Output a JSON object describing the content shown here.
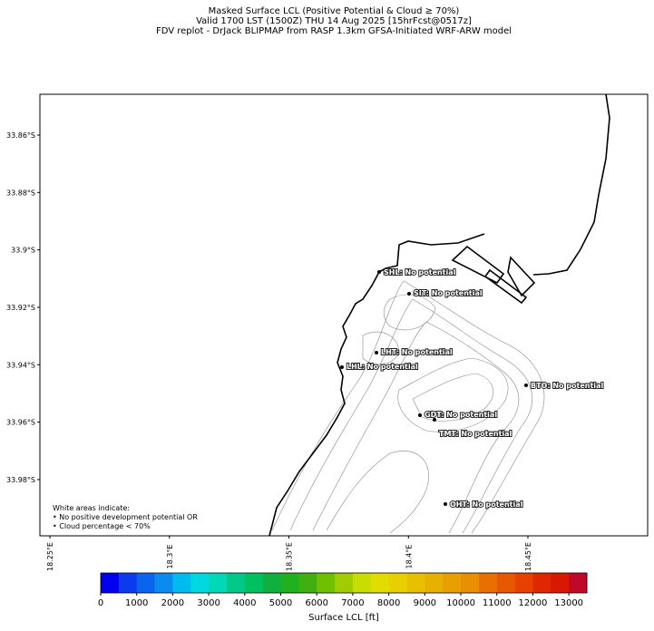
{
  "header": {
    "lines": [
      "Masked Surface LCL (Positive Potential & Cloud ≥ 70%)",
      "Valid 1700 LST (1500Z) THU 14 Aug 2025 [15hrFcst@0517z]",
      "FDV replot - DrJack BLIPMAP from RASP 1.3km GFSA-Initiated WRF-ARW model"
    ]
  },
  "map": {
    "xlim": [
      18.2458,
      18.5001
    ],
    "ylim": [
      -33.8458,
      -33.9996
    ],
    "yticks": [
      {
        "value": -33.86,
        "label": "33.86°S"
      },
      {
        "value": -33.88,
        "label": "33.88°S"
      },
      {
        "value": -33.9,
        "label": "33.9°S"
      },
      {
        "value": -33.92,
        "label": "33.92°S"
      },
      {
        "value": -33.94,
        "label": "33.94°S"
      },
      {
        "value": -33.96,
        "label": "33.96°S"
      },
      {
        "value": -33.98,
        "label": "33.98°S"
      }
    ],
    "xticks": [
      {
        "value": 18.25,
        "label": "18.25°E"
      },
      {
        "value": 18.3,
        "label": "18.3°E"
      },
      {
        "value": 18.35,
        "label": "18.35°E"
      },
      {
        "value": 18.4,
        "label": "18.4°E"
      },
      {
        "value": 18.45,
        "label": "18.45°E"
      }
    ],
    "stations": [
      "SHL: No potential",
      "SIT: No potential",
      "LHT: No potential",
      "LHL: No potential",
      "BTO: No potential",
      "GDT: No potential",
      "TMT: No potential",
      "OHT: No potential"
    ],
    "note": [
      "White areas indicate:",
      "• No positive development potential OR",
      "• Cloud percentage < 70%"
    ]
  },
  "colorbar": {
    "label": "Surface LCL [ft]",
    "lim": [
      0,
      13500
    ],
    "ticks": [
      0,
      1000,
      2000,
      3000,
      4000,
      5000,
      6000,
      7000,
      8000,
      9000,
      10000,
      11000,
      12000,
      13000
    ],
    "colors": [
      "#0000ee",
      "#0a3cee",
      "#0a64ee",
      "#0a8cee",
      "#00bcee",
      "#00d8e0",
      "#00d8b8",
      "#00c888",
      "#00c060",
      "#10b040",
      "#20b020",
      "#40b010",
      "#70c000",
      "#a0cc00",
      "#c8dc00",
      "#e0dc00",
      "#e8d000",
      "#e8c000",
      "#e8b000",
      "#e8a000",
      "#e89000",
      "#e87000",
      "#e85800",
      "#e84000",
      "#e02800",
      "#d81800",
      "#c00828"
    ]
  }
}
